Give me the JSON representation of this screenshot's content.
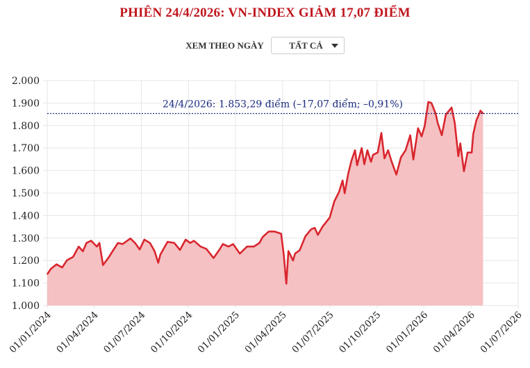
{
  "header": {
    "title": "PHIÊN 24/4/2026: VN-INDEX GIẢM 17,07 ĐIỂM"
  },
  "filter": {
    "label": "XEM THEO NGÀY",
    "selected": "TẤT CẢ"
  },
  "colors": {
    "title": "#c0161e",
    "line": "#d9262e",
    "fill": "#f4bec0",
    "reference": "#1a2a80",
    "annotation": "#1a2a80"
  },
  "chart_data": {
    "type": "area",
    "title": "PHIÊN 24/4/2026: VN-INDEX GIẢM 17,07 ĐIỂM",
    "xlabel": "",
    "ylabel": "",
    "x_start": "01/01/2024",
    "ylim": [
      1000,
      2000
    ],
    "y_ticks": [
      "1.000",
      "1.100",
      "1.200",
      "1.300",
      "1.400",
      "1.500",
      "1.600",
      "1.700",
      "1.800",
      "1.900",
      "2.000"
    ],
    "x_ticks": [
      "01/01/2024",
      "01/04/2024",
      "01/07/2024",
      "01/10/2024",
      "01/01/2025",
      "01/04/2025",
      "01/07/2025",
      "01/10/2025",
      "01/01/2026",
      "01/04/2026",
      "01/07/2026"
    ],
    "grid": true,
    "reference_value": 1853.29,
    "annotation": "24/4/2026: 1.853,29 điểm (–17,07 điểm; –0,91%)",
    "series": [
      {
        "name": "VN-Index",
        "x_days_since_start": [
          0,
          7,
          18,
          29,
          38,
          50,
          61,
          69,
          76,
          85,
          96,
          101,
          108,
          119,
          128,
          137,
          146,
          161,
          170,
          179,
          188,
          199,
          208,
          215,
          219,
          233,
          246,
          257,
          268,
          277,
          284,
          297,
          308,
          322,
          333,
          340,
          351,
          360,
          373,
          387,
          400,
          411,
          417,
          429,
          440,
          453,
          458,
          463,
          467,
          476,
          480,
          489,
          500,
          511,
          518,
          524,
          533,
          547,
          556,
          565,
          572,
          576,
          583,
          589,
          596,
          600,
          609,
          614,
          620,
          627,
          631,
          640,
          647,
          653,
          660,
          667,
          676,
          685,
          694,
          703,
          709,
          718,
          725,
          731,
          738,
          744,
          752,
          756,
          764,
          772,
          783,
          789,
          796,
          800,
          807,
          814,
          822,
          825,
          831,
          839,
          844
        ],
        "values": [
          1139,
          1163,
          1183,
          1169,
          1201,
          1216,
          1262,
          1241,
          1278,
          1288,
          1262,
          1278,
          1180,
          1214,
          1247,
          1278,
          1273,
          1298,
          1278,
          1249,
          1293,
          1278,
          1241,
          1190,
          1226,
          1283,
          1278,
          1247,
          1293,
          1278,
          1288,
          1262,
          1252,
          1211,
          1247,
          1273,
          1262,
          1273,
          1231,
          1262,
          1262,
          1278,
          1304,
          1329,
          1329,
          1319,
          1226,
          1097,
          1242,
          1200,
          1231,
          1246,
          1308,
          1339,
          1345,
          1314,
          1350,
          1391,
          1463,
          1504,
          1556,
          1499,
          1587,
          1643,
          1690,
          1623,
          1700,
          1628,
          1690,
          1639,
          1670,
          1680,
          1767,
          1654,
          1690,
          1639,
          1582,
          1659,
          1690,
          1757,
          1649,
          1788,
          1752,
          1798,
          1905,
          1900,
          1854,
          1813,
          1757,
          1849,
          1880,
          1813,
          1664,
          1721,
          1597,
          1680,
          1680,
          1762,
          1823,
          1866,
          1853.29
        ]
      }
    ]
  }
}
